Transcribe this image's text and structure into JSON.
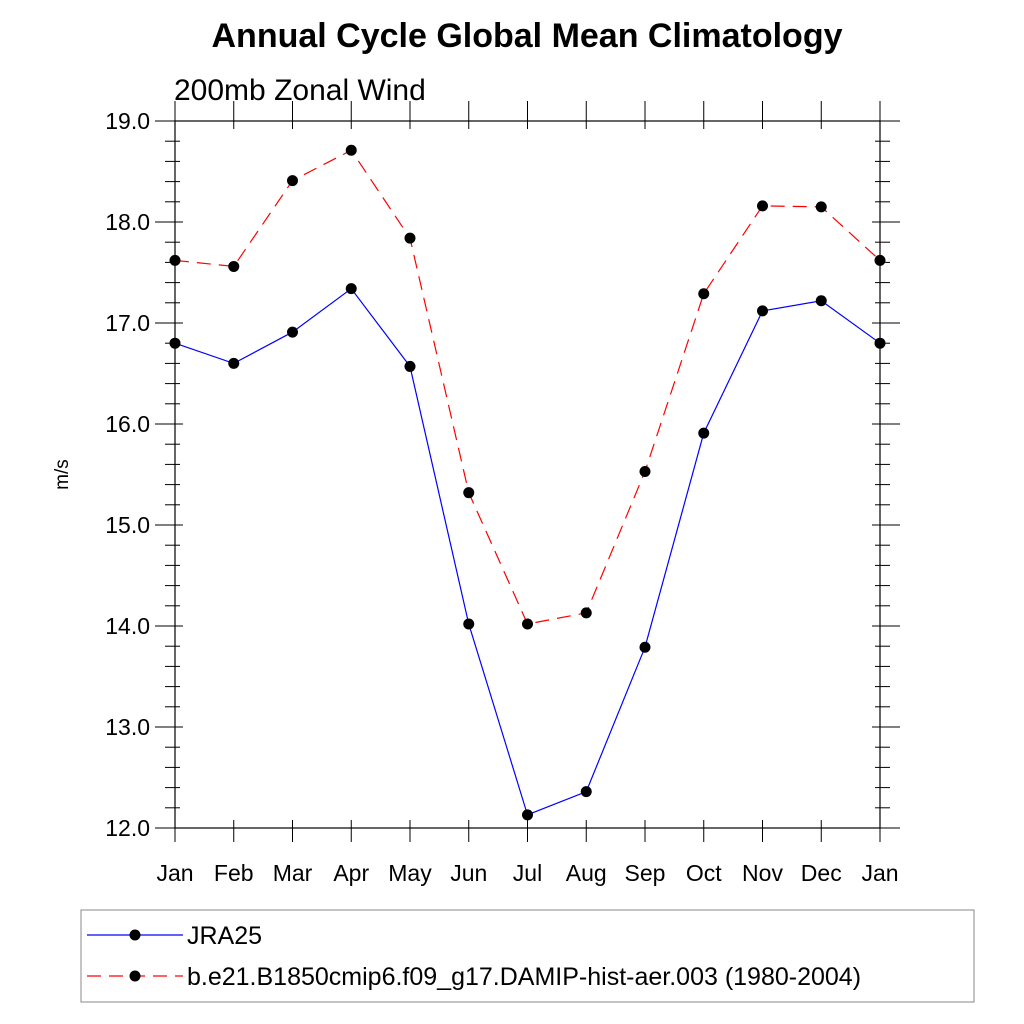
{
  "chart_data": {
    "type": "line",
    "title": "Annual Cycle Global Mean Climatology",
    "subtitle": "200mb Zonal Wind",
    "xlabel": "",
    "ylabel": "m/s",
    "categories": [
      "Jan",
      "Feb",
      "Mar",
      "Apr",
      "May",
      "Jun",
      "Jul",
      "Aug",
      "Sep",
      "Oct",
      "Nov",
      "Dec",
      "Jan"
    ],
    "ylim": [
      12.0,
      19.0
    ],
    "yticks": [
      "12.0",
      "13.0",
      "14.0",
      "15.0",
      "16.0",
      "17.0",
      "18.0",
      "19.0"
    ],
    "grid": false,
    "legend_position": "bottom",
    "series": [
      {
        "name": "JRA25",
        "color": "#0000ff",
        "dash": "solid",
        "marker": "filled-circle",
        "values": [
          16.8,
          16.6,
          16.91,
          17.34,
          16.57,
          14.02,
          12.13,
          12.36,
          13.79,
          15.91,
          17.12,
          17.22,
          16.8
        ]
      },
      {
        "name": "b.e21.B1850cmip6.f09_g17.DAMIP-hist-aer.003 (1980-2004)",
        "color": "#ff0000",
        "dash": "dashed",
        "marker": "filled-circle",
        "values": [
          17.62,
          17.56,
          18.41,
          18.71,
          17.84,
          15.32,
          14.02,
          14.13,
          15.53,
          17.29,
          18.16,
          18.15,
          17.62
        ]
      }
    ]
  }
}
